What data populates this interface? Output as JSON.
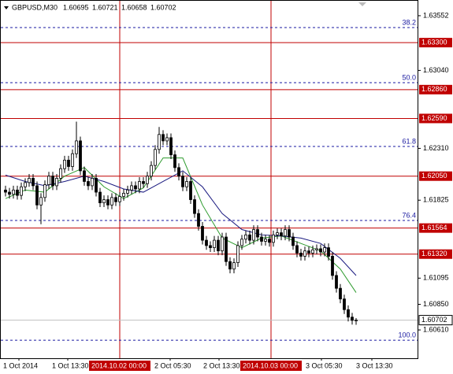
{
  "chart_data": {
    "type": "candlestick",
    "title": "GBPUSD,M30",
    "header_prices": [
      "1.60695",
      "1.60721",
      "1.60658",
      "1.60702"
    ],
    "ylim": [
      1.60345,
      1.63699
    ],
    "price_ticks": [
      {
        "value": 1.63552,
        "label": "1.63552"
      },
      {
        "value": 1.6304,
        "label": "1.63040"
      },
      {
        "value": 1.6231,
        "label": "1.62310"
      },
      {
        "value": 1.61825,
        "label": "1.61825"
      },
      {
        "value": 1.61095,
        "label": "1.61095"
      },
      {
        "value": 1.6085,
        "label": "1.60850"
      },
      {
        "value": 1.6061,
        "label": "1.60610"
      }
    ],
    "levels": [
      {
        "value": 1.633,
        "label": "1.63300"
      },
      {
        "value": 1.6286,
        "label": "1.62860"
      },
      {
        "value": 1.6259,
        "label": "1.62590"
      },
      {
        "value": 1.6205,
        "label": "1.62050"
      },
      {
        "value": 1.61564,
        "label": "1.61564"
      },
      {
        "value": 1.6132,
        "label": "1.61320"
      }
    ],
    "level_color": "#c00000",
    "fib_levels": [
      {
        "value": 1.63441,
        "label": "38.2"
      },
      {
        "value": 1.62925,
        "label": "50.0"
      },
      {
        "value": 1.62328,
        "label": "61.8"
      },
      {
        "value": 1.61635,
        "label": "76.4"
      },
      {
        "value": 1.60514,
        "label": "100.0"
      }
    ],
    "fib_color": "#1a1aa0",
    "current_price": {
      "value": 1.60702,
      "label": "1.60702"
    },
    "x_labels": [
      "1 Oct 2014",
      "1 Oct 13:30",
      "2014.10.02 00:00",
      "2 Oct 05:30",
      "2 Oct 13:30",
      "2014.10.03 00:00",
      "3 Oct 05:30",
      "3 Oct 13:30"
    ],
    "open": [
      1.6192,
      1.619,
      1.6188,
      1.6192,
      1.6187,
      1.6195,
      1.6199,
      1.6203,
      1.6196,
      1.6178,
      1.6185,
      1.6197,
      1.6205,
      1.6196,
      1.6203,
      1.6212,
      1.622,
      1.6214,
      1.6226,
      1.6238,
      1.621,
      1.62,
      1.6196,
      1.6203,
      1.619,
      1.618,
      1.6183,
      1.6178,
      1.6185,
      1.6181,
      1.6186,
      1.6189,
      1.6192,
      1.6196,
      1.6193,
      1.62,
      1.6198,
      1.6205,
      1.6215,
      1.623,
      1.6244,
      1.6238,
      1.6241,
      1.6225,
      1.6213,
      1.6205,
      1.6195,
      1.62,
      1.6183,
      1.617,
      1.6158,
      1.6145,
      1.614,
      1.6138,
      1.6145,
      1.6135,
      1.6148,
      1.6125,
      1.6118,
      1.6124,
      1.614,
      1.6146,
      1.615,
      1.6145,
      1.6155,
      1.6148,
      1.6144,
      1.6146,
      1.6143,
      1.615,
      1.6152,
      1.6149,
      1.6155,
      1.6148,
      1.614,
      1.6133,
      1.613,
      1.6135,
      1.6133,
      1.6136,
      1.6137,
      1.6134,
      1.6138,
      1.613,
      1.6112,
      1.61,
      1.609,
      1.608,
      1.6073,
      1.60695
    ],
    "high": [
      1.6196,
      1.6194,
      1.6196,
      1.6196,
      1.6199,
      1.6203,
      1.6207,
      1.6207,
      1.62,
      1.6189,
      1.6201,
      1.6209,
      1.6209,
      1.6207,
      1.6216,
      1.6224,
      1.6224,
      1.623,
      1.6256,
      1.6242,
      1.6214,
      1.6204,
      1.6207,
      1.6207,
      1.6194,
      1.6187,
      1.6187,
      1.6189,
      1.6189,
      1.619,
      1.6193,
      1.6196,
      1.62,
      1.62,
      1.6204,
      1.6204,
      1.6209,
      1.6219,
      1.6234,
      1.6251,
      1.6248,
      1.6245,
      1.6245,
      1.6229,
      1.6217,
      1.6209,
      1.6204,
      1.6204,
      1.6187,
      1.6174,
      1.6162,
      1.6149,
      1.6144,
      1.6149,
      1.6149,
      1.6152,
      1.6152,
      1.6129,
      1.6128,
      1.6144,
      1.615,
      1.6154,
      1.6154,
      1.6159,
      1.6159,
      1.6152,
      1.615,
      1.615,
      1.6154,
      1.6156,
      1.6156,
      1.6159,
      1.6159,
      1.6152,
      1.6144,
      1.6137,
      1.6139,
      1.6139,
      1.614,
      1.6141,
      1.6141,
      1.6142,
      1.6142,
      1.6134,
      1.6116,
      1.6104,
      1.6094,
      1.6084,
      1.6077,
      1.60721
    ],
    "low": [
      1.6186,
      1.6184,
      1.6184,
      1.6183,
      1.6183,
      1.6191,
      1.6195,
      1.6192,
      1.6174,
      1.616,
      1.6181,
      1.6193,
      1.6192,
      1.6192,
      1.6199,
      1.6208,
      1.621,
      1.621,
      1.6222,
      1.6206,
      1.6196,
      1.6192,
      1.6192,
      1.6186,
      1.6176,
      1.6176,
      1.6174,
      1.6174,
      1.6177,
      1.6177,
      1.6182,
      1.6185,
      1.6188,
      1.6189,
      1.6189,
      1.6194,
      1.6194,
      1.6201,
      1.6211,
      1.6226,
      1.6234,
      1.6234,
      1.6221,
      1.6209,
      1.6201,
      1.6191,
      1.6191,
      1.6179,
      1.6166,
      1.6154,
      1.6141,
      1.6136,
      1.6134,
      1.6134,
      1.6131,
      1.6131,
      1.6121,
      1.6114,
      1.6114,
      1.612,
      1.6136,
      1.6142,
      1.6141,
      1.6141,
      1.6144,
      1.614,
      1.614,
      1.6139,
      1.6139,
      1.6146,
      1.6145,
      1.6145,
      1.6144,
      1.6136,
      1.6129,
      1.6126,
      1.6126,
      1.6129,
      1.6129,
      1.6132,
      1.613,
      1.613,
      1.6126,
      1.6108,
      1.6096,
      1.6086,
      1.6076,
      1.6069,
      1.6066,
      1.60658
    ],
    "close": [
      1.619,
      1.6188,
      1.6192,
      1.6187,
      1.6195,
      1.6199,
      1.6203,
      1.6196,
      1.6178,
      1.6185,
      1.6197,
      1.6205,
      1.6196,
      1.6203,
      1.6212,
      1.622,
      1.6214,
      1.6226,
      1.6238,
      1.621,
      1.62,
      1.6196,
      1.6203,
      1.619,
      1.618,
      1.6183,
      1.6178,
      1.6185,
      1.6181,
      1.6186,
      1.6189,
      1.6192,
      1.6196,
      1.6193,
      1.62,
      1.6198,
      1.6205,
      1.6215,
      1.623,
      1.6244,
      1.6238,
      1.6241,
      1.6225,
      1.6213,
      1.6205,
      1.6195,
      1.62,
      1.6183,
      1.617,
      1.6158,
      1.6145,
      1.614,
      1.6138,
      1.6145,
      1.6135,
      1.6148,
      1.6125,
      1.6118,
      1.6124,
      1.614,
      1.6146,
      1.615,
      1.6145,
      1.6155,
      1.6148,
      1.6144,
      1.6146,
      1.6143,
      1.615,
      1.6152,
      1.6149,
      1.6155,
      1.6148,
      1.614,
      1.6133,
      1.613,
      1.6135,
      1.6133,
      1.6136,
      1.6137,
      1.6134,
      1.6138,
      1.613,
      1.6112,
      1.61,
      1.609,
      1.608,
      1.6073,
      1.607,
      1.60702
    ],
    "ma_lines": [
      {
        "color": "#2e9b2e",
        "index": [
          0,
          5,
          10,
          15,
          20,
          25,
          30,
          35,
          40,
          45,
          50,
          55,
          60,
          65,
          70,
          75,
          80,
          85,
          89
        ],
        "values": [
          1.6184,
          1.6192,
          1.619,
          1.6205,
          1.6213,
          1.6195,
          1.6184,
          1.6194,
          1.6222,
          1.6222,
          1.6178,
          1.6147,
          1.6138,
          1.6147,
          1.6149,
          1.6142,
          1.6135,
          1.6118,
          1.6096
        ]
      },
      {
        "color": "#1a1a80",
        "index": [
          0,
          5,
          10,
          15,
          20,
          25,
          30,
          35,
          40,
          45,
          50,
          55,
          60,
          65,
          70,
          75,
          80,
          85,
          89
        ],
        "values": [
          1.6206,
          1.62,
          1.6196,
          1.62,
          1.6205,
          1.62,
          1.6193,
          1.619,
          1.62,
          1.621,
          1.6195,
          1.617,
          1.6155,
          1.615,
          1.6149,
          1.6147,
          1.6142,
          1.6128,
          1.6112
        ]
      }
    ]
  }
}
